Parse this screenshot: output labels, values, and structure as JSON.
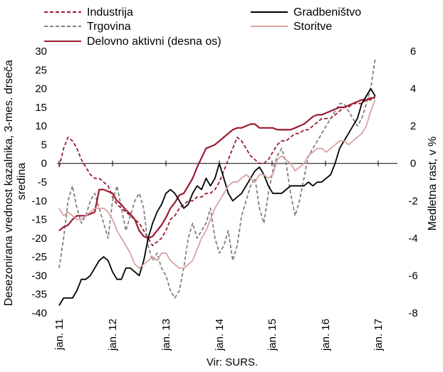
{
  "chart_data": {
    "type": "line",
    "source": "Vir: SURS.",
    "ylabel_left": "Desezonirana vrednost kazalnika, 3-mes. drseča sredina",
    "ylabel_right": "Medletna rast, v %",
    "ylim_left": [
      -40,
      30
    ],
    "ylim_right": [
      -8,
      6
    ],
    "left_ticks": [
      "30",
      "25",
      "20",
      "15",
      "10",
      "5",
      "0",
      "-5",
      "-10",
      "-15",
      "-20",
      "-25",
      "-30",
      "-35",
      "-40"
    ],
    "right_ticks": [
      "6",
      "4",
      "2",
      "0",
      "-2",
      "-4",
      "-6",
      "-8"
    ],
    "x_ticks": [
      "jan. 11",
      "jan. 12",
      "jan. 13",
      "jan. 14",
      "jan. 15",
      "jan. 16",
      "jan. 17"
    ],
    "x_start": "jan. 11",
    "series": [
      {
        "name": "Industrija",
        "color": "#9b1b30",
        "dash": "dashed",
        "axis": "left",
        "values": [
          -1,
          4,
          7,
          6,
          4,
          1,
          -1,
          -3,
          -4,
          -4,
          -5,
          -6,
          -9,
          -11,
          -12,
          -13,
          -14,
          -15,
          -16,
          -18,
          -20,
          -22,
          -21,
          -20,
          -18,
          -15,
          -14,
          -12,
          -11,
          -10,
          -10,
          -9,
          -9,
          -8,
          -8,
          -7,
          -5,
          -2,
          1,
          4,
          7,
          6,
          4,
          2,
          1,
          0,
          0,
          1,
          3,
          5,
          6,
          6,
          7,
          8,
          8,
          9,
          9,
          10,
          11,
          12,
          12,
          12,
          13,
          14,
          15,
          15,
          16,
          16,
          16,
          17,
          17,
          18
        ]
      },
      {
        "name": "Trgovina",
        "color": "#808080",
        "dash": "dashed",
        "axis": "left",
        "values": [
          -28,
          -20,
          -10,
          -6,
          -12,
          -16,
          -14,
          -10,
          -8,
          -12,
          -16,
          -20,
          -10,
          -6,
          -12,
          -18,
          -14,
          -10,
          -8,
          -12,
          -22,
          -26,
          -24,
          -28,
          -30,
          -34,
          -36,
          -34,
          -28,
          -20,
          -16,
          -20,
          -18,
          -16,
          -12,
          -20,
          -24,
          -22,
          -18,
          -26,
          -22,
          -14,
          -10,
          -6,
          -4,
          -12,
          -16,
          -8,
          -2,
          2,
          4,
          0,
          -8,
          -14,
          -10,
          -4,
          2,
          4,
          6,
          8,
          10,
          12,
          14,
          16,
          16,
          14,
          12,
          10,
          12,
          16,
          20,
          28
        ]
      },
      {
        "name": "Delovno aktivni (desna os)",
        "color": "#9b1b30",
        "dash": "solid",
        "axis": "right",
        "values": [
          -3.6,
          -3.4,
          -3.3,
          -3.0,
          -2.8,
          -2.8,
          -2.8,
          -2.7,
          -2.6,
          -1.4,
          -1.4,
          -1.5,
          -1.6,
          -2.0,
          -2.2,
          -2.5,
          -2.7,
          -3.0,
          -3.6,
          -3.9,
          -4.0,
          -3.9,
          -3.6,
          -3.3,
          -2.9,
          -2.4,
          -2.1,
          -1.7,
          -1.6,
          -1.2,
          -0.8,
          -0.2,
          0.3,
          0.8,
          0.9,
          1.0,
          1.2,
          1.4,
          1.6,
          1.8,
          1.9,
          1.9,
          2.0,
          2.1,
          2.1,
          1.9,
          1.9,
          1.9,
          1.9,
          1.8,
          1.8,
          1.8,
          1.8,
          1.9,
          2.0,
          2.1,
          2.3,
          2.5,
          2.6,
          2.6,
          2.7,
          2.8,
          2.9,
          3.0,
          3.0,
          3.1,
          3.2,
          3.3,
          3.4,
          3.4,
          3.5,
          3.5
        ]
      },
      {
        "name": "Gradbeništvo",
        "color": "#000000",
        "dash": "solid",
        "axis": "left",
        "values": [
          -38,
          -36,
          -36,
          -36,
          -34,
          -31,
          -31,
          -30,
          -28,
          -26,
          -25,
          -26,
          -29,
          -31,
          -31,
          -28,
          -28,
          -29,
          -30,
          -26,
          -20,
          -16,
          -13,
          -11,
          -8,
          -7,
          -8,
          -10,
          -12,
          -11,
          -8,
          -6,
          -7,
          -4,
          -6,
          -4,
          0,
          -4,
          -8,
          -10,
          -9,
          -8,
          -6,
          -4,
          -2,
          -1,
          -3,
          -6,
          -8,
          -8,
          -8,
          -7,
          -6,
          -6,
          -6,
          -6,
          -5,
          -6,
          -5,
          -5,
          -4,
          -3,
          0,
          4,
          6,
          8,
          10,
          12,
          16,
          18,
          20,
          18
        ]
      },
      {
        "name": "Storitve",
        "color": "#d9a3a0",
        "dash": "solid",
        "axis": "left",
        "values": [
          -12,
          -14,
          -13,
          -14,
          -15,
          -15,
          -14,
          -13,
          -12,
          -12,
          -12,
          -13,
          -15,
          -18,
          -20,
          -22,
          -24,
          -27,
          -28,
          -27,
          -26,
          -25,
          -26,
          -24,
          -24,
          -26,
          -27,
          -28,
          -28,
          -27,
          -26,
          -23,
          -20,
          -18,
          -15,
          -12,
          -10,
          -8,
          -6,
          -5,
          -5,
          -4,
          -3,
          -4,
          -5,
          -3,
          -3,
          -4,
          -3,
          1,
          2,
          1,
          0,
          -2,
          -1,
          0,
          2,
          3,
          4,
          4,
          3,
          4,
          5,
          6,
          6,
          5,
          6,
          7,
          8,
          10,
          14,
          17
        ]
      }
    ]
  },
  "legend": [
    {
      "label": "Industrija",
      "color": "#9b1b30",
      "dash": "dashed"
    },
    {
      "label": "Gradbeništvo",
      "color": "#000000",
      "dash": "solid"
    },
    {
      "label": "Trgovina",
      "color": "#808080",
      "dash": "dashed"
    },
    {
      "label": "Storitve",
      "color": "#d9a3a0",
      "dash": "solid"
    },
    {
      "label": "Delovno aktivni (desna os)",
      "color": "#9b1b30",
      "dash": "solid"
    }
  ]
}
